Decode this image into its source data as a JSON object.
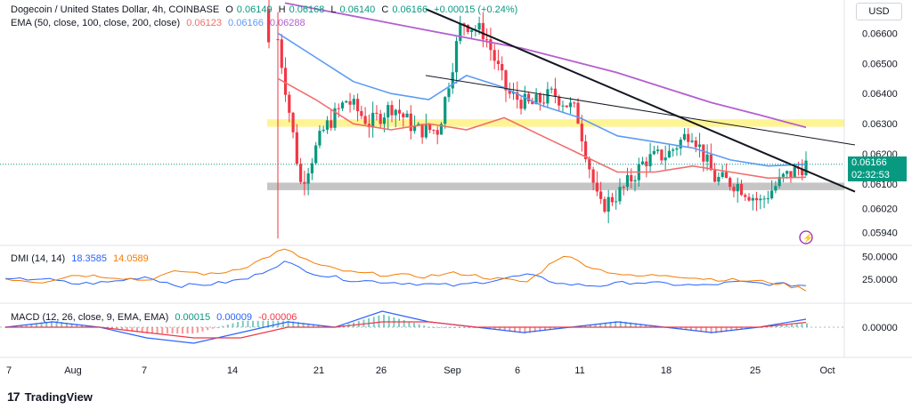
{
  "header": {
    "symbol": "Dogecoin / United States Dollar, 4h, COINBASE",
    "o_label": "O",
    "o_val": "0.06149",
    "h_label": "H",
    "h_val": "0.06168",
    "l_label": "L",
    "l_val": "0.06140",
    "c_label": "C",
    "c_val": "0.06166",
    "change": "+0.00015 (+0.24%)",
    "ema_label": "EMA (50, close, 100, close, 200, close)",
    "ema50": "0.06123",
    "ema100": "0.06166",
    "ema200": "0.06288",
    "currency_button": "USD"
  },
  "price_tag": {
    "price": "0.06166",
    "countdown": "02:32:53"
  },
  "dmi": {
    "label": "DMI (14, 14)",
    "plus": "18.3585",
    "minus": "14.0589"
  },
  "macd": {
    "label": "MACD (12, 26, close, 9, EMA, EMA)",
    "v1": "0.00015",
    "v2": "0.00009",
    "v3": "-0.00006"
  },
  "brand": "TradingView",
  "colors": {
    "up": "#089981",
    "down": "#f23645",
    "ema50": "#f06e6e",
    "ema100": "#5b9cf6",
    "ema200": "#b45fd1",
    "dmi_plus": "#2962ff",
    "dmi_minus": "#f57c00",
    "resistance_zone": "#ffeb3b",
    "support_zone": "#9e9e9e"
  },
  "chart_data": [
    {
      "type": "candlestick",
      "title": "Dogecoin / United States Dollar, 4h, COINBASE",
      "y_axis_ticks": [
        "0.06600",
        "0.06500",
        "0.06400",
        "0.06300",
        "0.06200",
        "0.06100",
        "0.06020",
        "0.05940"
      ],
      "ylim": [
        0.059,
        0.0671
      ],
      "x_ticks": [
        "7",
        "Aug",
        "7",
        "14",
        "21",
        "26",
        "Sep",
        "6",
        "11",
        "18",
        "25",
        "Oct"
      ],
      "price_path": [
        {
          "x": "Aug 16",
          "y": 0.0658
        },
        {
          "x": "Aug 17",
          "y": 0.061
        },
        {
          "x": "Aug 18",
          "y": 0.0628
        },
        {
          "x": "Aug 20",
          "y": 0.0638
        },
        {
          "x": "Aug 22",
          "y": 0.063
        },
        {
          "x": "Aug 24",
          "y": 0.0636
        },
        {
          "x": "Aug 26",
          "y": 0.0628
        },
        {
          "x": "Aug 28",
          "y": 0.0628
        },
        {
          "x": "Aug 29",
          "y": 0.0664
        },
        {
          "x": "Aug 30",
          "y": 0.066
        },
        {
          "x": "Aug 31",
          "y": 0.064
        },
        {
          "x": "Sep 3",
          "y": 0.0636
        },
        {
          "x": "Sep 6",
          "y": 0.064
        },
        {
          "x": "Sep 9",
          "y": 0.0634
        },
        {
          "x": "Sep 11",
          "y": 0.0602
        },
        {
          "x": "Sep 12",
          "y": 0.0608
        },
        {
          "x": "Sep 15",
          "y": 0.0618
        },
        {
          "x": "Sep 18",
          "y": 0.062
        },
        {
          "x": "Sep 20",
          "y": 0.0628
        },
        {
          "x": "Sep 22",
          "y": 0.0612
        },
        {
          "x": "Sep 24",
          "y": 0.061
        },
        {
          "x": "Sep 26",
          "y": 0.0604
        },
        {
          "x": "Sep 28",
          "y": 0.0612
        },
        {
          "x": "Sep 29",
          "y": 0.06166
        }
      ],
      "ema50": [
        0.0645,
        0.0638,
        0.063,
        0.0628,
        0.063,
        0.0628,
        0.0632,
        0.0626,
        0.062,
        0.0614,
        0.0614,
        0.0616,
        0.0614,
        0.0612,
        0.06123
      ],
      "ema100": [
        0.066,
        0.0652,
        0.0644,
        0.064,
        0.0638,
        0.0646,
        0.0642,
        0.0636,
        0.0632,
        0.0626,
        0.0624,
        0.0622,
        0.0618,
        0.0616,
        0.06166
      ],
      "ema200": [
        0.067,
        0.0667,
        0.0664,
        0.0661,
        0.0658,
        0.0655,
        0.0651,
        0.0647,
        0.0642,
        0.0637,
        0.0633,
        0.06288
      ],
      "zones": [
        {
          "name": "resistance",
          "from": 0.0629,
          "to": 0.06315
        },
        {
          "name": "support",
          "from": 0.0608,
          "to": 0.06105
        }
      ]
    },
    {
      "type": "line",
      "title": "DMI (14, 14)",
      "y_axis_ticks": [
        "50.0000",
        "25.0000"
      ],
      "ylim": [
        0,
        60
      ],
      "series": [
        {
          "name": "+DI",
          "values": [
            24,
            26,
            20,
            22,
            28,
            18,
            20,
            26,
            44,
            30,
            24,
            22,
            20,
            18,
            24,
            30,
            20,
            18,
            22,
            20,
            18,
            22,
            20,
            18.36
          ]
        },
        {
          "name": "-DI",
          "values": [
            26,
            22,
            30,
            28,
            24,
            34,
            30,
            40,
            58,
            40,
            32,
            30,
            28,
            32,
            26,
            22,
            52,
            36,
            28,
            30,
            26,
            24,
            22,
            14.06
          ]
        }
      ]
    },
    {
      "type": "line",
      "title": "MACD (12, 26, close, 9, EMA, EMA)",
      "y_axis_ticks": [
        "0.00000"
      ],
      "series": [
        {
          "name": "MACD",
          "values": [
            0.0,
            0.0001,
            0.0,
            -0.0002,
            -0.0003,
            -0.0001,
            0.0001,
            0.0,
            0.0003,
            0.0001,
            0.0,
            -0.0001,
            0.0,
            0.0001,
            0.0,
            -0.0001,
            0.0,
            0.00015
          ]
        },
        {
          "name": "Signal",
          "values": [
            0.0,
            0.0,
            0.0,
            -0.0001,
            -0.0002,
            -0.0002,
            0.0,
            0.0,
            0.0001,
            0.0001,
            0.0,
            0.0,
            0.0,
            0.0,
            0.0,
            0.0,
            0.0,
            9e-05
          ]
        }
      ]
    }
  ]
}
